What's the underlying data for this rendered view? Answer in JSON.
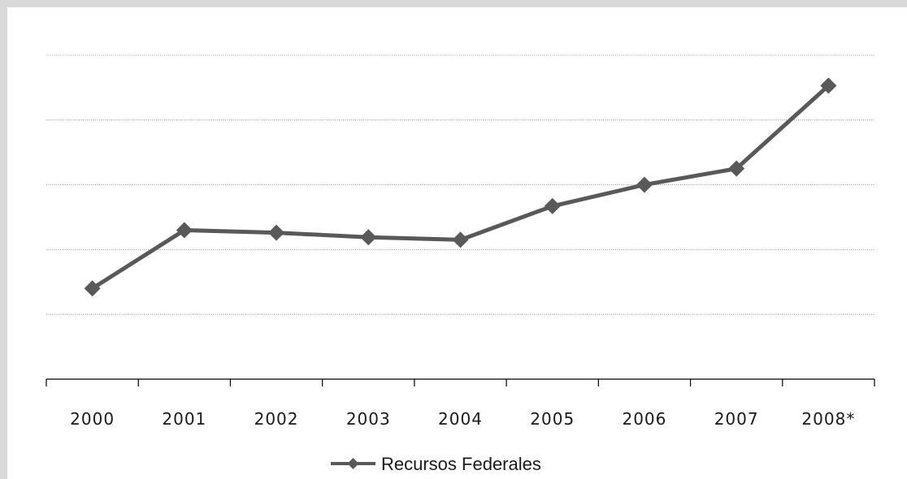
{
  "chart_data": {
    "type": "line",
    "categories": [
      "2000",
      "2001",
      "2002",
      "2003",
      "2004",
      "2005",
      "2006",
      "2007",
      "2008*"
    ],
    "series": [
      {
        "name": "Recursos Federales",
        "values": [
          1.4,
          2.3,
          2.26,
          2.19,
          2.15,
          2.67,
          3.0,
          3.25,
          4.53
        ]
      }
    ],
    "ylim": [
      0,
      5
    ],
    "grid": true,
    "y_tick_labels_shown": false,
    "legend_position": "bottom",
    "colors": {
      "series": "#595959",
      "axis": "#000000",
      "grid": "#7f7f7f",
      "frame": "#d9d9d9"
    }
  }
}
